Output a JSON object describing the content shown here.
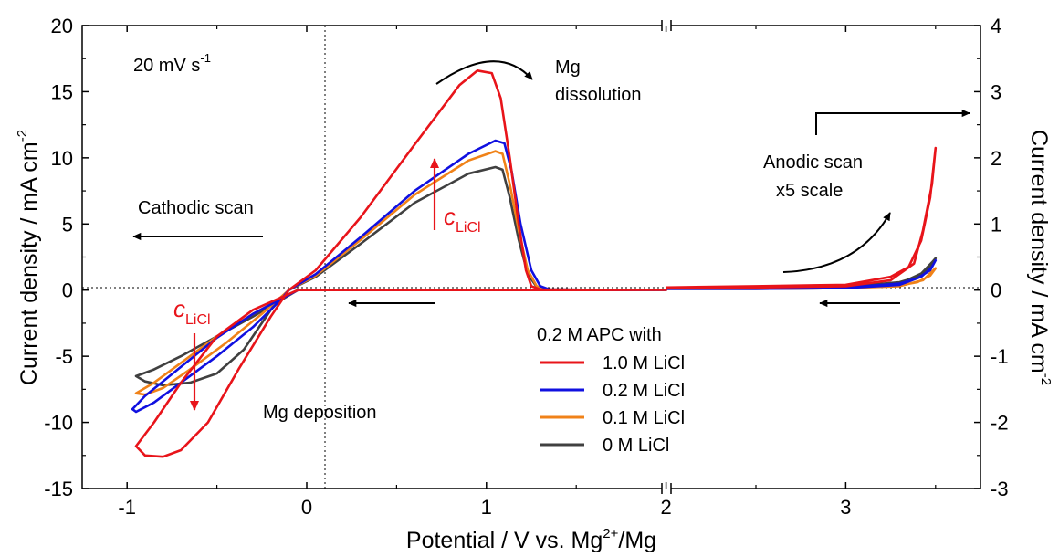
{
  "chart_data": {
    "type": "line",
    "title": "",
    "xlabel": "Potential / V vs. Mg",
    "xlabel_sup": "2+",
    "xlabel_tail": "/Mg",
    "ylabel_left": "Current density / mA cm",
    "ylabel_left_sup": "-2",
    "ylabel_right": "Current density / mA cm",
    "ylabel_right_sup": "-2",
    "x_ticks": [
      "-1",
      "0",
      "1",
      "2",
      "3"
    ],
    "y_left_ticks": [
      "-15",
      "-10",
      "-5",
      "0",
      "5",
      "10",
      "15",
      "20"
    ],
    "y_right_ticks": [
      "-3",
      "-2",
      "-1",
      "0",
      "1",
      "2",
      "3",
      "4"
    ],
    "xlim": [
      -1.25,
      3.75
    ],
    "ylim_left": [
      -15,
      20
    ],
    "ylim_right": [
      -3,
      4
    ],
    "axis_break_at": 2,
    "right_region_scale": "x5",
    "grid": false,
    "legend": {
      "placement": "bottom-center",
      "title": "0.2 M APC with",
      "entries": [
        "1.0 M LiCl",
        "0.2 M LiCl",
        "0.1 M LiCl",
        "0 M LiCl"
      ]
    },
    "annotations": {
      "scan_rate": "20 mV s",
      "scan_rate_sup": "-1",
      "mg_dissolution_1": "Mg",
      "mg_dissolution_2": "dissolution",
      "cathodic_scan": "Cathodic scan",
      "anodic_scan_1": "Anodic scan",
      "anodic_scan_2": "x5 scale",
      "mg_deposition": "Mg deposition",
      "c_symbol": "c",
      "c_subscript": "LiCl"
    },
    "series": [
      {
        "name": "1.0 M LiCl",
        "color": "#e8141a",
        "cv_loop": [
          [
            -0.1,
            0
          ],
          [
            0.05,
            1.5
          ],
          [
            0.3,
            5.5
          ],
          [
            0.6,
            11
          ],
          [
            0.85,
            15.5
          ],
          [
            0.95,
            16.6
          ],
          [
            1.03,
            16.4
          ],
          [
            1.08,
            14.5
          ],
          [
            1.13,
            10
          ],
          [
            1.18,
            5
          ],
          [
            1.22,
            1.5
          ],
          [
            1.25,
            0.3
          ],
          [
            1.3,
            0.05
          ],
          [
            1.6,
            0.02
          ],
          [
            2.0,
            0.02
          ],
          [
            1.6,
            0
          ],
          [
            1.3,
            0
          ],
          [
            1.0,
            0
          ],
          [
            0.5,
            0
          ],
          [
            0.2,
            0
          ],
          [
            -0.05,
            0
          ],
          [
            -0.3,
            -1.5
          ],
          [
            -0.5,
            -3.5
          ],
          [
            -0.7,
            -7
          ],
          [
            -0.85,
            -10
          ],
          [
            -0.95,
            -11.8
          ],
          [
            -0.9,
            -12.5
          ],
          [
            -0.8,
            -12.6
          ],
          [
            -0.7,
            -12.1
          ],
          [
            -0.55,
            -10
          ],
          [
            -0.38,
            -6
          ],
          [
            -0.2,
            -2
          ],
          [
            -0.1,
            0
          ]
        ],
        "anodic_loop": [
          [
            2.0,
            0.04
          ],
          [
            2.5,
            0.06
          ],
          [
            3.0,
            0.08
          ],
          [
            3.25,
            0.2
          ],
          [
            3.35,
            0.35
          ],
          [
            3.42,
            0.75
          ],
          [
            3.47,
            1.4
          ],
          [
            3.5,
            2.15
          ],
          [
            3.48,
            1.6
          ],
          [
            3.43,
            0.9
          ],
          [
            3.38,
            0.4
          ],
          [
            3.25,
            0.15
          ],
          [
            3.0,
            0.06
          ],
          [
            2.5,
            0.04
          ],
          [
            2.0,
            0.03
          ]
        ]
      },
      {
        "name": "0.2 M LiCl",
        "color": "#1010e0",
        "cv_loop": [
          [
            -0.1,
            0
          ],
          [
            0.05,
            1.2
          ],
          [
            0.3,
            4
          ],
          [
            0.6,
            7.5
          ],
          [
            0.9,
            10.3
          ],
          [
            1.05,
            11.3
          ],
          [
            1.1,
            11.1
          ],
          [
            1.14,
            9
          ],
          [
            1.19,
            5
          ],
          [
            1.25,
            1.5
          ],
          [
            1.3,
            0.3
          ],
          [
            1.35,
            0.05
          ],
          [
            1.6,
            0.02
          ],
          [
            2.0,
            0.02
          ],
          [
            1.6,
            0
          ],
          [
            1.3,
            0
          ],
          [
            1.0,
            0
          ],
          [
            0.5,
            0
          ],
          [
            0.2,
            0
          ],
          [
            -0.05,
            0
          ],
          [
            -0.3,
            -1.8
          ],
          [
            -0.5,
            -3.6
          ],
          [
            -0.7,
            -5.8
          ],
          [
            -0.9,
            -8
          ],
          [
            -0.97,
            -9
          ],
          [
            -0.95,
            -9.2
          ],
          [
            -0.85,
            -8.5
          ],
          [
            -0.7,
            -7
          ],
          [
            -0.5,
            -5
          ],
          [
            -0.3,
            -2.8
          ],
          [
            -0.15,
            -0.8
          ],
          [
            -0.1,
            0
          ]
        ],
        "anodic_loop": [
          [
            2.0,
            0.02
          ],
          [
            2.5,
            0.02
          ],
          [
            3.0,
            0.03
          ],
          [
            3.3,
            0.08
          ],
          [
            3.42,
            0.2
          ],
          [
            3.48,
            0.35
          ],
          [
            3.5,
            0.45
          ],
          [
            3.47,
            0.3
          ],
          [
            3.4,
            0.18
          ],
          [
            3.3,
            0.1
          ],
          [
            3.0,
            0.04
          ],
          [
            2.0,
            0.02
          ]
        ]
      },
      {
        "name": "0.1 M LiCl",
        "color": "#f08218",
        "cv_loop": [
          [
            -0.1,
            0
          ],
          [
            0.05,
            1.1
          ],
          [
            0.3,
            3.8
          ],
          [
            0.6,
            7.2
          ],
          [
            0.9,
            9.8
          ],
          [
            1.05,
            10.5
          ],
          [
            1.09,
            10.3
          ],
          [
            1.13,
            8
          ],
          [
            1.18,
            4.5
          ],
          [
            1.23,
            1.5
          ],
          [
            1.28,
            0.3
          ],
          [
            1.33,
            0.05
          ],
          [
            1.6,
            0.02
          ],
          [
            2.0,
            0.02
          ],
          [
            1.6,
            0
          ],
          [
            1.3,
            0
          ],
          [
            1.0,
            0
          ],
          [
            0.5,
            0
          ],
          [
            0.2,
            0
          ],
          [
            -0.05,
            0
          ],
          [
            -0.3,
            -1.8
          ],
          [
            -0.5,
            -3.5
          ],
          [
            -0.7,
            -5.5
          ],
          [
            -0.85,
            -7
          ],
          [
            -0.95,
            -7.8
          ],
          [
            -0.9,
            -7.9
          ],
          [
            -0.8,
            -7.4
          ],
          [
            -0.65,
            -6
          ],
          [
            -0.45,
            -4
          ],
          [
            -0.25,
            -1.8
          ],
          [
            -0.1,
            0
          ]
        ],
        "anodic_loop": [
          [
            2.0,
            0.02
          ],
          [
            2.5,
            0.02
          ],
          [
            3.0,
            0.03
          ],
          [
            3.3,
            0.06
          ],
          [
            3.43,
            0.15
          ],
          [
            3.48,
            0.28
          ],
          [
            3.5,
            0.33
          ],
          [
            3.47,
            0.22
          ],
          [
            3.4,
            0.12
          ],
          [
            3.3,
            0.07
          ],
          [
            3.0,
            0.03
          ],
          [
            2.0,
            0.02
          ]
        ]
      },
      {
        "name": "0 M LiCl",
        "color": "#404040",
        "cv_loop": [
          [
            -0.1,
            0
          ],
          [
            0.05,
            1.0
          ],
          [
            0.3,
            3.5
          ],
          [
            0.6,
            6.6
          ],
          [
            0.9,
            8.8
          ],
          [
            1.05,
            9.3
          ],
          [
            1.09,
            9.1
          ],
          [
            1.13,
            7
          ],
          [
            1.18,
            3.8
          ],
          [
            1.23,
            1.2
          ],
          [
            1.28,
            0.25
          ],
          [
            1.33,
            0.05
          ],
          [
            1.6,
            0.02
          ],
          [
            2.0,
            0.02
          ],
          [
            1.6,
            0
          ],
          [
            1.3,
            0
          ],
          [
            1.0,
            0
          ],
          [
            0.5,
            0
          ],
          [
            0.2,
            0
          ],
          [
            -0.05,
            0
          ],
          [
            -0.3,
            -2
          ],
          [
            -0.5,
            -3.5
          ],
          [
            -0.7,
            -5
          ],
          [
            -0.85,
            -6
          ],
          [
            -0.95,
            -6.5
          ],
          [
            -0.9,
            -6.9
          ],
          [
            -0.8,
            -7.2
          ],
          [
            -0.65,
            -7
          ],
          [
            -0.5,
            -6.3
          ],
          [
            -0.35,
            -4.5
          ],
          [
            -0.2,
            -1.5
          ],
          [
            -0.1,
            0
          ]
        ],
        "anodic_loop": [
          [
            2.0,
            0.02
          ],
          [
            2.5,
            0.02
          ],
          [
            3.0,
            0.03
          ],
          [
            3.3,
            0.1
          ],
          [
            3.42,
            0.25
          ],
          [
            3.48,
            0.42
          ],
          [
            3.5,
            0.48
          ],
          [
            3.47,
            0.35
          ],
          [
            3.4,
            0.2
          ],
          [
            3.3,
            0.12
          ],
          [
            3.0,
            0.05
          ],
          [
            2.0,
            0.02
          ]
        ]
      }
    ]
  }
}
